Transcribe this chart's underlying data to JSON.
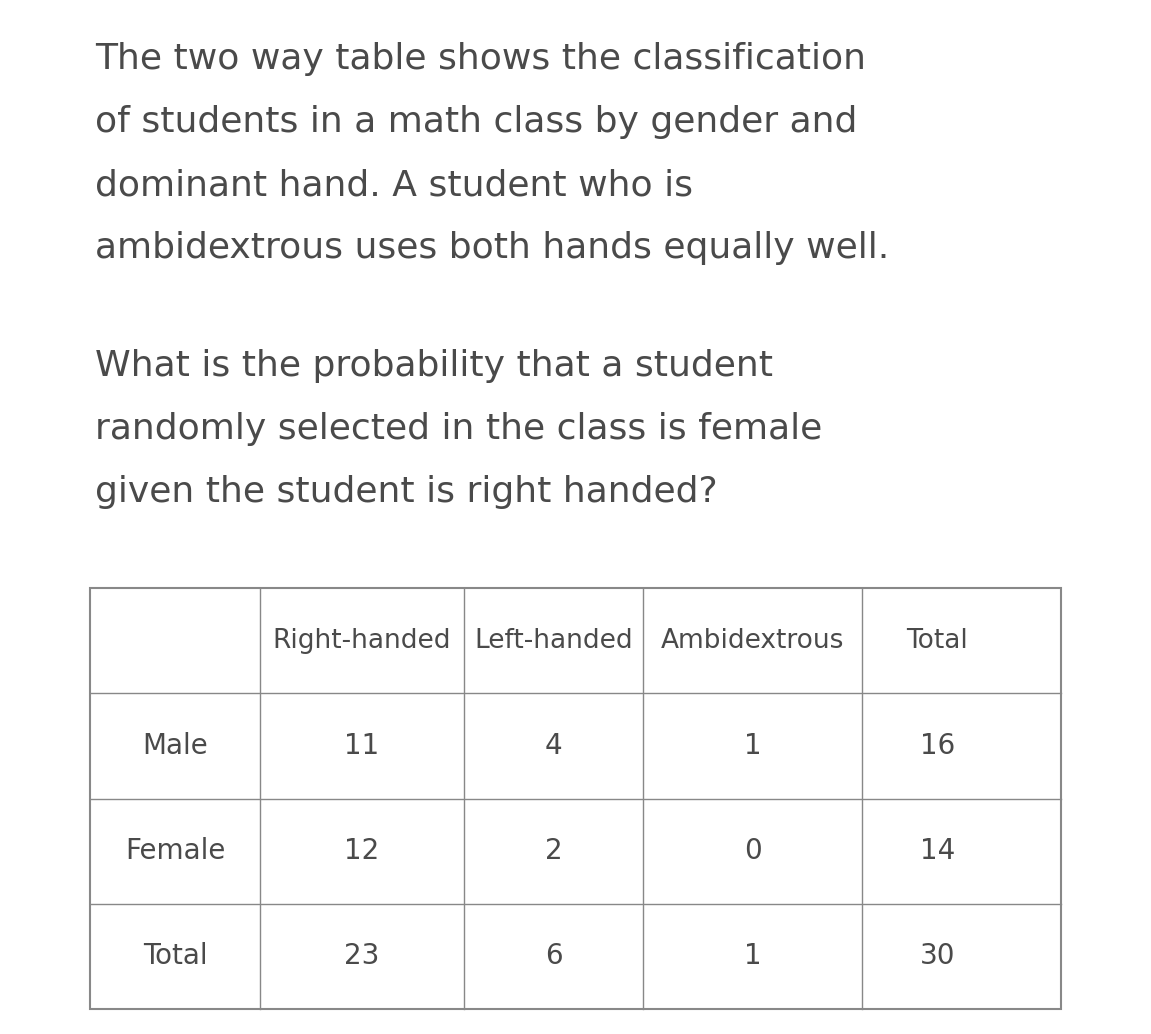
{
  "para1_lines": [
    "The two way table shows the classification",
    "of students in a math class by gender and",
    "dominant hand. A student who is",
    "ambidextrous uses both hands equally well."
  ],
  "para2_lines": [
    "What is the probability that a student",
    "randomly selected in the class is female",
    "given the student is right handed?"
  ],
  "col_headers": [
    "",
    "Right-handed",
    "Left-handed",
    "Ambidextrous",
    "Total"
  ],
  "rows": [
    [
      "Male",
      "11",
      "4",
      "1",
      "16"
    ],
    [
      "Female",
      "12",
      "2",
      "0",
      "14"
    ],
    [
      "Total",
      "23",
      "6",
      "1",
      "30"
    ]
  ],
  "bg_color": "#ffffff",
  "text_color": "#4a4a4a",
  "table_line_color": "#888888",
  "text_fontsize": 26,
  "table_header_fontsize": 19,
  "table_data_fontsize": 20,
  "fig_width": 11.51,
  "fig_height": 10.34,
  "dpi": 100
}
